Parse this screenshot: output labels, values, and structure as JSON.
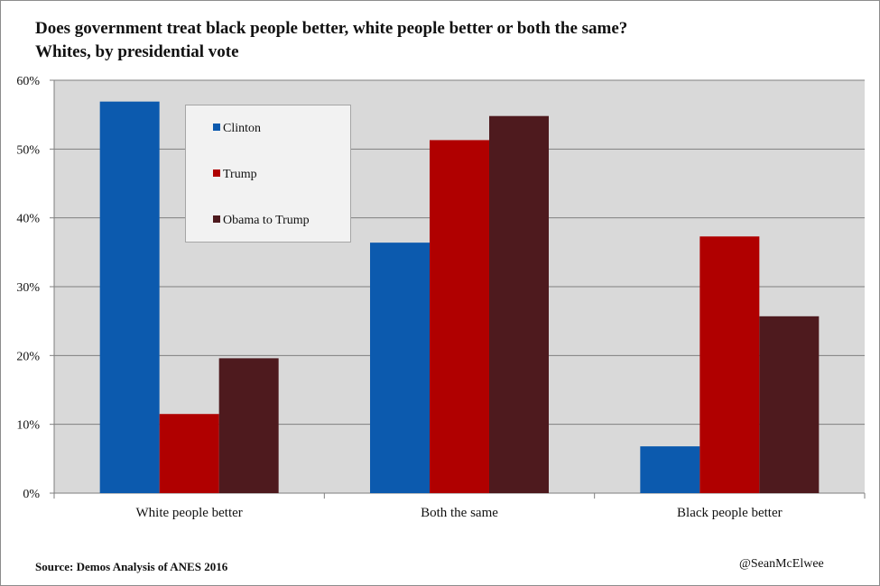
{
  "title_lines": [
    "Does government treat black people better, white people better or both the same?",
    "Whites, by presidential vote"
  ],
  "source": "Source: Demos Analysis of ANES 2016",
  "credit": "@SeanMcElwee",
  "colors": {
    "plot_background": "#d9d9d9",
    "gridline": "#7f7f7f",
    "axis": "#7f7f7f"
  },
  "chart_data": {
    "type": "bar",
    "title": "Does government treat black people better, white people better or both the same? Whites, by presidential vote",
    "categories": [
      "White people better",
      "Both the same",
      "Black people better"
    ],
    "series": [
      {
        "name": "Clinton",
        "color": "#0c5aae",
        "values": [
          56.9,
          36.4,
          6.8
        ]
      },
      {
        "name": "Trump",
        "color": "#b00000",
        "values": [
          11.5,
          51.3,
          37.3
        ]
      },
      {
        "name": "Obama to Trump",
        "color": "#4e1a1e",
        "values": [
          19.6,
          54.8,
          25.7
        ]
      }
    ],
    "ylim": [
      0,
      60
    ],
    "yticks": [
      0,
      10,
      20,
      30,
      40,
      50,
      60
    ],
    "ytick_labels": [
      "0%",
      "10%",
      "20%",
      "30%",
      "40%",
      "50%",
      "60%"
    ],
    "xlabel": "",
    "ylabel": "",
    "grid": true,
    "legend_position": "top-left-inside"
  }
}
